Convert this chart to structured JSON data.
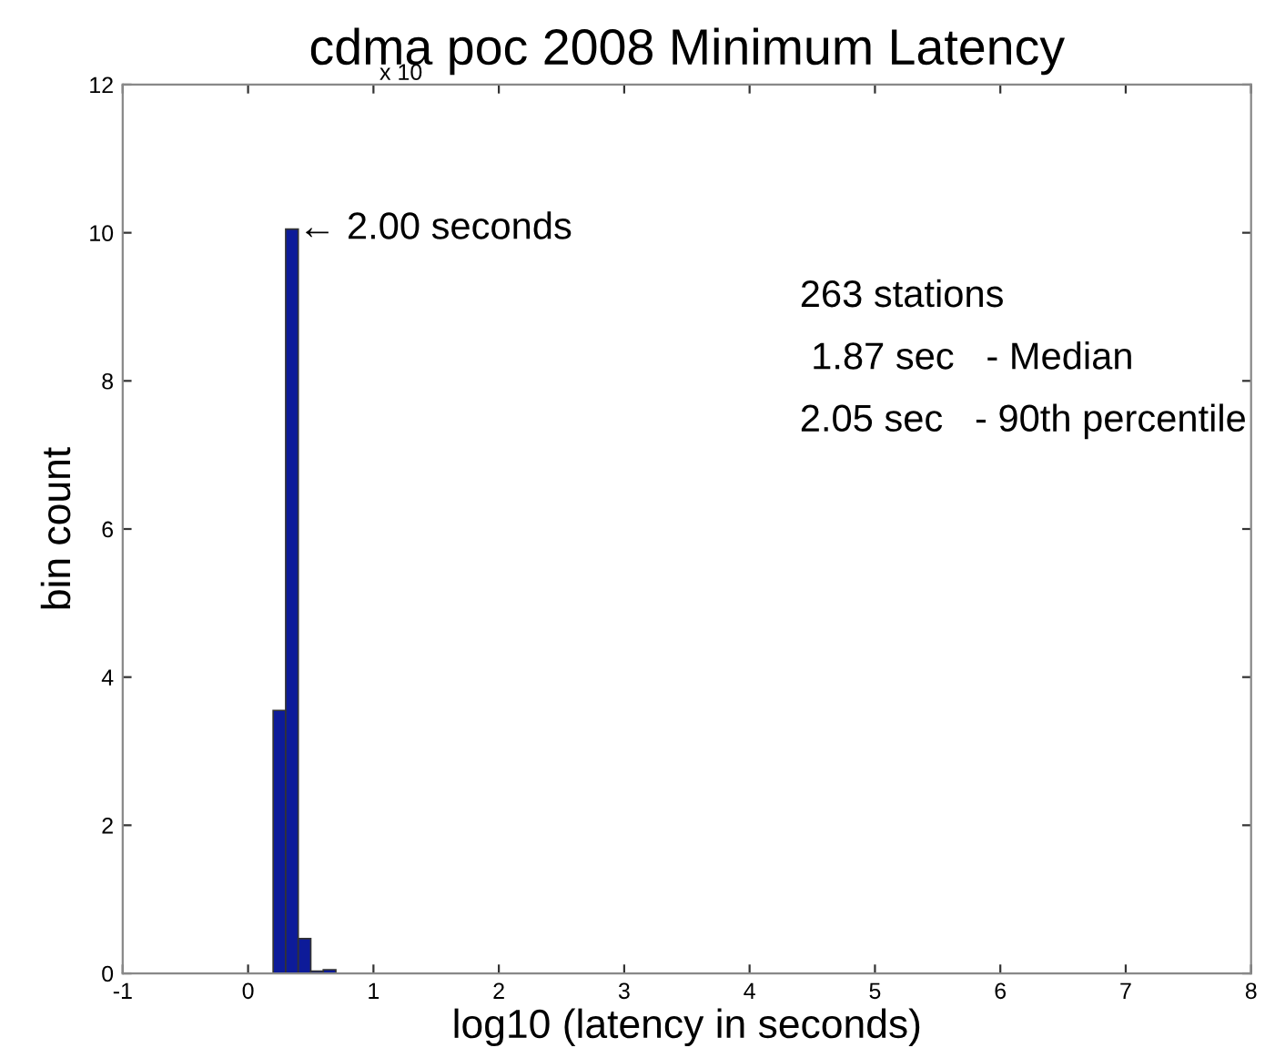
{
  "chart_data": {
    "type": "histogram",
    "title": "cdma poc 2008 Minimum Latency",
    "xlabel": "log10 (latency in seconds)",
    "ylabel": "bin count",
    "bins": [
      0.2,
      0.3,
      0.4,
      0.5,
      0.6,
      0.7
    ],
    "values": [
      3.55,
      10.05,
      0.47,
      0.03,
      0.05
    ],
    "color": "#0d1b99",
    "xlim": [
      -1,
      8
    ],
    "xticks": [
      -1,
      0,
      1,
      2,
      3,
      4,
      5,
      6,
      7,
      8
    ],
    "ylim": [
      0,
      12
    ],
    "yticks": [
      0,
      2,
      4,
      6,
      8,
      10,
      12
    ],
    "grid": false,
    "annotations": [
      {
        "text": "← 2.00 seconds",
        "x": 0.4,
        "y": 10.05
      },
      "x 10",
      "263 stations",
      "1.87 sec   - Median",
      "2.05 sec   - 90th percentile"
    ]
  }
}
